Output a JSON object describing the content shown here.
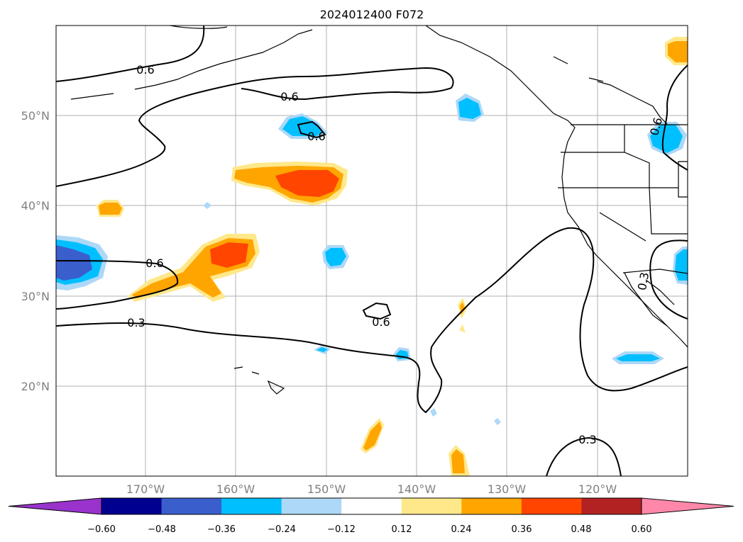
{
  "title": "2024012400 F072",
  "lat_labels": [
    "50°N",
    "40°N",
    "30°N",
    "20°N"
  ],
  "lon_labels": [
    "170°W",
    "160°W",
    "150°W",
    "140°W",
    "130°W",
    "120°W"
  ],
  "colorbar": {
    "ticks": [
      "−0.60",
      "−0.48",
      "−0.36",
      "−0.24",
      "−0.12",
      "0.12",
      "0.24",
      "0.36",
      "0.48",
      "0.60"
    ],
    "colors": [
      "#9933cc",
      "#000090",
      "#3a5fcd",
      "#00bfff",
      "#add8f7",
      "#ffffff",
      "#ffe88a",
      "#ffa500",
      "#ff4500",
      "#b22222",
      "#ff88aa"
    ]
  },
  "contour_labels": [
    "0.6",
    "0.6",
    "0.6",
    "0.6",
    "0.6",
    "0.3",
    "0.3",
    "0.6",
    "0.3"
  ]
}
